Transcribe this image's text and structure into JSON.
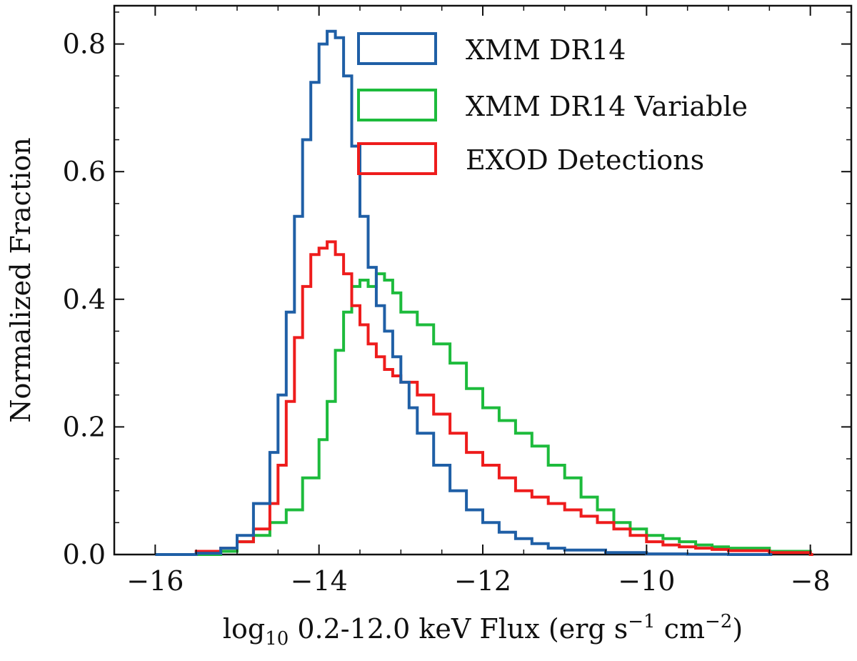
{
  "chart_data": {
    "type": "step-histogram",
    "xlabel": "log10 0.2-12.0 keV Flux (erg s^-1 cm^-2)",
    "xlabel_parts": {
      "prefix": "log",
      "sub": "10",
      "middle": " 0.2-12.0 keV Flux (erg s",
      "sup1": "−1",
      "mid2": " cm",
      "sup2": "−2",
      "suffix": ")"
    },
    "ylabel": "Normalized Fraction",
    "xlim": [
      -16.5,
      -7.5
    ],
    "ylim": [
      0.0,
      0.86
    ],
    "xticks": [
      -16,
      -14,
      -12,
      -10,
      -8
    ],
    "xtick_labels": [
      "−16",
      "−14",
      "−12",
      "−10",
      "−8"
    ],
    "yticks": [
      0.0,
      0.2,
      0.4,
      0.6,
      0.8
    ],
    "ytick_labels": [
      "0.0",
      "0.2",
      "0.4",
      "0.6",
      "0.8"
    ],
    "legend_position": "top-right",
    "series": [
      {
        "name": "XMM DR14",
        "color": "#1f5fa6",
        "x": [
          -16.0,
          -15.5,
          -15.2,
          -15.0,
          -14.8,
          -14.6,
          -14.5,
          -14.4,
          -14.3,
          -14.2,
          -14.1,
          -14.0,
          -13.9,
          -13.8,
          -13.7,
          -13.6,
          -13.5,
          -13.4,
          -13.3,
          -13.2,
          -13.1,
          -13.0,
          -12.9,
          -12.8,
          -12.6,
          -12.4,
          -12.2,
          -12.0,
          -11.8,
          -11.6,
          -11.4,
          -11.2,
          -11.0,
          -10.5,
          -10.0,
          -9.5,
          -9.0,
          -8.5
        ],
        "values": [
          0.0,
          0.002,
          0.01,
          0.03,
          0.08,
          0.16,
          0.25,
          0.38,
          0.53,
          0.65,
          0.74,
          0.8,
          0.82,
          0.81,
          0.75,
          0.64,
          0.53,
          0.45,
          0.39,
          0.35,
          0.31,
          0.27,
          0.23,
          0.19,
          0.14,
          0.1,
          0.07,
          0.05,
          0.035,
          0.025,
          0.017,
          0.01,
          0.007,
          0.003,
          0.001,
          0.0005,
          0.0,
          0.0
        ]
      },
      {
        "name": "XMM DR14 Variable",
        "color": "#1dbb3c",
        "x": [
          -16.0,
          -15.2,
          -15.0,
          -14.8,
          -14.6,
          -14.4,
          -14.2,
          -14.0,
          -13.9,
          -13.8,
          -13.7,
          -13.6,
          -13.5,
          -13.4,
          -13.3,
          -13.2,
          -13.1,
          -13.0,
          -12.8,
          -12.6,
          -12.4,
          -12.2,
          -12.0,
          -11.8,
          -11.6,
          -11.4,
          -11.2,
          -11.0,
          -10.8,
          -10.6,
          -10.4,
          -10.2,
          -10.0,
          -9.8,
          -9.6,
          -9.4,
          -9.2,
          -9.0,
          -8.5,
          -8.0
        ],
        "values": [
          0.0,
          0.005,
          0.02,
          0.03,
          0.05,
          0.07,
          0.12,
          0.18,
          0.24,
          0.32,
          0.38,
          0.42,
          0.43,
          0.42,
          0.44,
          0.43,
          0.41,
          0.38,
          0.36,
          0.33,
          0.3,
          0.26,
          0.23,
          0.21,
          0.19,
          0.17,
          0.14,
          0.12,
          0.09,
          0.07,
          0.05,
          0.04,
          0.03,
          0.025,
          0.02,
          0.015,
          0.012,
          0.01,
          0.005,
          0.0
        ]
      },
      {
        "name": "EXOD Detections",
        "color": "#ee1c1c",
        "x": [
          -16.0,
          -15.5,
          -15.2,
          -15.0,
          -14.8,
          -14.6,
          -14.5,
          -14.4,
          -14.3,
          -14.2,
          -14.1,
          -14.0,
          -13.9,
          -13.8,
          -13.7,
          -13.6,
          -13.5,
          -13.4,
          -13.3,
          -13.2,
          -13.1,
          -13.0,
          -12.8,
          -12.6,
          -12.4,
          -12.2,
          -12.0,
          -11.8,
          -11.6,
          -11.4,
          -11.2,
          -11.0,
          -10.8,
          -10.6,
          -10.4,
          -10.2,
          -10.0,
          -9.8,
          -9.6,
          -9.4,
          -9.2,
          -9.0,
          -8.5,
          -8.0
        ],
        "values": [
          0.0,
          0.005,
          0.01,
          0.02,
          0.04,
          0.08,
          0.14,
          0.24,
          0.34,
          0.42,
          0.47,
          0.48,
          0.49,
          0.47,
          0.44,
          0.39,
          0.36,
          0.33,
          0.31,
          0.29,
          0.28,
          0.27,
          0.25,
          0.22,
          0.19,
          0.16,
          0.14,
          0.12,
          0.1,
          0.09,
          0.08,
          0.07,
          0.06,
          0.05,
          0.04,
          0.03,
          0.02,
          0.015,
          0.012,
          0.01,
          0.008,
          0.006,
          0.003,
          0.0
        ]
      }
    ]
  }
}
